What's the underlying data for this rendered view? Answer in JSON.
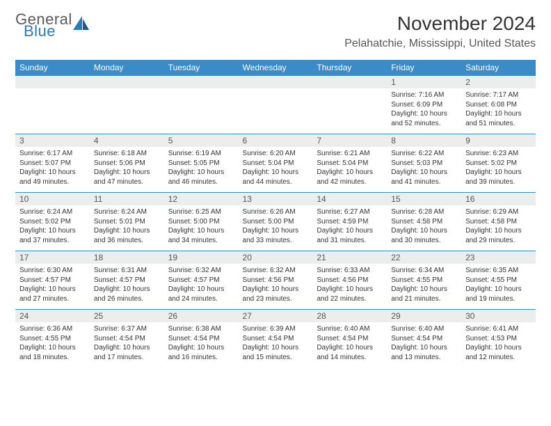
{
  "logo": {
    "word1": "General",
    "word2": "Blue"
  },
  "title": "November 2024",
  "location": "Pelahatchie, Mississippi, United States",
  "colors": {
    "header_bg": "#3b8bc8",
    "header_text": "#ffffff",
    "daynum_bg": "#eceded",
    "border": "#3b8bc8",
    "logo_gray": "#5a5a5a",
    "logo_blue": "#2a7ab9"
  },
  "weekdays": [
    "Sunday",
    "Monday",
    "Tuesday",
    "Wednesday",
    "Thursday",
    "Friday",
    "Saturday"
  ],
  "weeks": [
    [
      {
        "n": "",
        "sr": "",
        "ss": "",
        "dl": ""
      },
      {
        "n": "",
        "sr": "",
        "ss": "",
        "dl": ""
      },
      {
        "n": "",
        "sr": "",
        "ss": "",
        "dl": ""
      },
      {
        "n": "",
        "sr": "",
        "ss": "",
        "dl": ""
      },
      {
        "n": "",
        "sr": "",
        "ss": "",
        "dl": ""
      },
      {
        "n": "1",
        "sr": "Sunrise: 7:16 AM",
        "ss": "Sunset: 6:09 PM",
        "dl": "Daylight: 10 hours and 52 minutes."
      },
      {
        "n": "2",
        "sr": "Sunrise: 7:17 AM",
        "ss": "Sunset: 6:08 PM",
        "dl": "Daylight: 10 hours and 51 minutes."
      }
    ],
    [
      {
        "n": "3",
        "sr": "Sunrise: 6:17 AM",
        "ss": "Sunset: 5:07 PM",
        "dl": "Daylight: 10 hours and 49 minutes."
      },
      {
        "n": "4",
        "sr": "Sunrise: 6:18 AM",
        "ss": "Sunset: 5:06 PM",
        "dl": "Daylight: 10 hours and 47 minutes."
      },
      {
        "n": "5",
        "sr": "Sunrise: 6:19 AM",
        "ss": "Sunset: 5:05 PM",
        "dl": "Daylight: 10 hours and 46 minutes."
      },
      {
        "n": "6",
        "sr": "Sunrise: 6:20 AM",
        "ss": "Sunset: 5:04 PM",
        "dl": "Daylight: 10 hours and 44 minutes."
      },
      {
        "n": "7",
        "sr": "Sunrise: 6:21 AM",
        "ss": "Sunset: 5:04 PM",
        "dl": "Daylight: 10 hours and 42 minutes."
      },
      {
        "n": "8",
        "sr": "Sunrise: 6:22 AM",
        "ss": "Sunset: 5:03 PM",
        "dl": "Daylight: 10 hours and 41 minutes."
      },
      {
        "n": "9",
        "sr": "Sunrise: 6:23 AM",
        "ss": "Sunset: 5:02 PM",
        "dl": "Daylight: 10 hours and 39 minutes."
      }
    ],
    [
      {
        "n": "10",
        "sr": "Sunrise: 6:24 AM",
        "ss": "Sunset: 5:02 PM",
        "dl": "Daylight: 10 hours and 37 minutes."
      },
      {
        "n": "11",
        "sr": "Sunrise: 6:24 AM",
        "ss": "Sunset: 5:01 PM",
        "dl": "Daylight: 10 hours and 36 minutes."
      },
      {
        "n": "12",
        "sr": "Sunrise: 6:25 AM",
        "ss": "Sunset: 5:00 PM",
        "dl": "Daylight: 10 hours and 34 minutes."
      },
      {
        "n": "13",
        "sr": "Sunrise: 6:26 AM",
        "ss": "Sunset: 5:00 PM",
        "dl": "Daylight: 10 hours and 33 minutes."
      },
      {
        "n": "14",
        "sr": "Sunrise: 6:27 AM",
        "ss": "Sunset: 4:59 PM",
        "dl": "Daylight: 10 hours and 31 minutes."
      },
      {
        "n": "15",
        "sr": "Sunrise: 6:28 AM",
        "ss": "Sunset: 4:58 PM",
        "dl": "Daylight: 10 hours and 30 minutes."
      },
      {
        "n": "16",
        "sr": "Sunrise: 6:29 AM",
        "ss": "Sunset: 4:58 PM",
        "dl": "Daylight: 10 hours and 29 minutes."
      }
    ],
    [
      {
        "n": "17",
        "sr": "Sunrise: 6:30 AM",
        "ss": "Sunset: 4:57 PM",
        "dl": "Daylight: 10 hours and 27 minutes."
      },
      {
        "n": "18",
        "sr": "Sunrise: 6:31 AM",
        "ss": "Sunset: 4:57 PM",
        "dl": "Daylight: 10 hours and 26 minutes."
      },
      {
        "n": "19",
        "sr": "Sunrise: 6:32 AM",
        "ss": "Sunset: 4:57 PM",
        "dl": "Daylight: 10 hours and 24 minutes."
      },
      {
        "n": "20",
        "sr": "Sunrise: 6:32 AM",
        "ss": "Sunset: 4:56 PM",
        "dl": "Daylight: 10 hours and 23 minutes."
      },
      {
        "n": "21",
        "sr": "Sunrise: 6:33 AM",
        "ss": "Sunset: 4:56 PM",
        "dl": "Daylight: 10 hours and 22 minutes."
      },
      {
        "n": "22",
        "sr": "Sunrise: 6:34 AM",
        "ss": "Sunset: 4:55 PM",
        "dl": "Daylight: 10 hours and 21 minutes."
      },
      {
        "n": "23",
        "sr": "Sunrise: 6:35 AM",
        "ss": "Sunset: 4:55 PM",
        "dl": "Daylight: 10 hours and 19 minutes."
      }
    ],
    [
      {
        "n": "24",
        "sr": "Sunrise: 6:36 AM",
        "ss": "Sunset: 4:55 PM",
        "dl": "Daylight: 10 hours and 18 minutes."
      },
      {
        "n": "25",
        "sr": "Sunrise: 6:37 AM",
        "ss": "Sunset: 4:54 PM",
        "dl": "Daylight: 10 hours and 17 minutes."
      },
      {
        "n": "26",
        "sr": "Sunrise: 6:38 AM",
        "ss": "Sunset: 4:54 PM",
        "dl": "Daylight: 10 hours and 16 minutes."
      },
      {
        "n": "27",
        "sr": "Sunrise: 6:39 AM",
        "ss": "Sunset: 4:54 PM",
        "dl": "Daylight: 10 hours and 15 minutes."
      },
      {
        "n": "28",
        "sr": "Sunrise: 6:40 AM",
        "ss": "Sunset: 4:54 PM",
        "dl": "Daylight: 10 hours and 14 minutes."
      },
      {
        "n": "29",
        "sr": "Sunrise: 6:40 AM",
        "ss": "Sunset: 4:54 PM",
        "dl": "Daylight: 10 hours and 13 minutes."
      },
      {
        "n": "30",
        "sr": "Sunrise: 6:41 AM",
        "ss": "Sunset: 4:53 PM",
        "dl": "Daylight: 10 hours and 12 minutes."
      }
    ]
  ]
}
